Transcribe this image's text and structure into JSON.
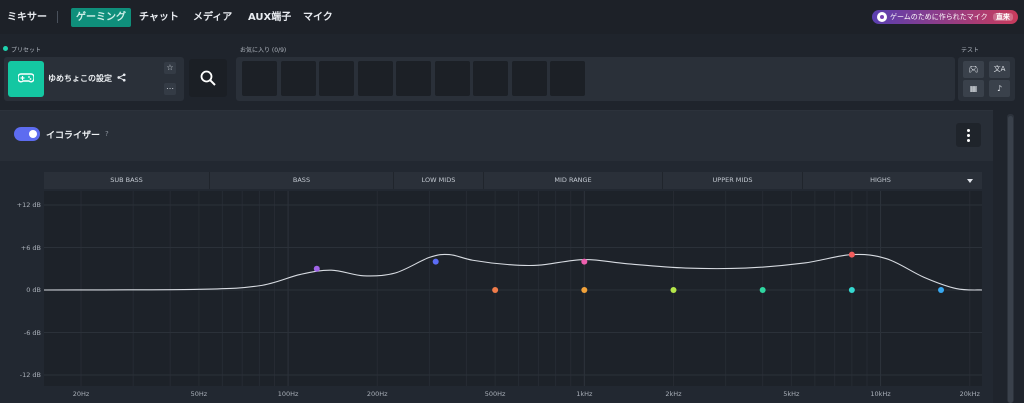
{
  "nav": {
    "items": [
      "ミキサー",
      "ゲーミング",
      "チャット",
      "メディア",
      "AUX端子",
      "マイク"
    ],
    "active": "ゲーミング",
    "promo": {
      "text": "ゲームのために作られたマイク",
      "action": "直来"
    }
  },
  "preset": {
    "label": "プリセット",
    "name": "ゆめちょこの設定",
    "icon": "gamepad-icon"
  },
  "favorites": {
    "label": "お気に入り (0/9)",
    "slots": 9
  },
  "test": {
    "label": "テスト",
    "buttons": [
      "gamepad-icon",
      "translate-icon",
      "film-icon",
      "music-note-icon"
    ]
  },
  "equalizer": {
    "title": "イコライザー",
    "help": "?",
    "enabled": true,
    "bands": [
      "SUB BASS",
      "BASS",
      "LOW MIDS",
      "MID RANGE",
      "UPPER MIDS",
      "HIGHS"
    ]
  },
  "chart_data": {
    "type": "line",
    "y_axis": {
      "ticks": [
        "+12 dB",
        "+6 dB",
        "0 dB",
        "-6 dB",
        "-12 dB"
      ],
      "range": [
        -12,
        12
      ],
      "unit": "dB"
    },
    "x_axis": {
      "scale": "log",
      "ticks": [
        "20Hz",
        "50Hz",
        "100Hz",
        "200Hz",
        "500Hz",
        "1kHz",
        "2kHz",
        "5kHz",
        "10kHz",
        "20kHz"
      ],
      "range": [
        15,
        22000
      ]
    },
    "points": [
      {
        "freq": 125,
        "gain": 3.0,
        "color": "#a065e8"
      },
      {
        "freq": 315,
        "gain": 4.0,
        "color": "#5b6cf5"
      },
      {
        "freq": 500,
        "gain": 0,
        "color": "#f07c4a"
      },
      {
        "freq": 1000,
        "gain": 4.0,
        "color": "#ee5fae"
      },
      {
        "freq": 1000,
        "gain": 0,
        "color": "#f2a23a"
      },
      {
        "freq": 2000,
        "gain": 0,
        "color": "#b5e64a"
      },
      {
        "freq": 4000,
        "gain": 0,
        "color": "#2fd6a0"
      },
      {
        "freq": 8000,
        "gain": 5.0,
        "color": "#f25c5c"
      },
      {
        "freq": 8000,
        "gain": 0,
        "color": "#35d8d0"
      },
      {
        "freq": 16000,
        "gain": 0,
        "color": "#38a8f0"
      }
    ],
    "curve": [
      [
        15,
        0
      ],
      [
        50,
        0.1
      ],
      [
        80,
        0.6
      ],
      [
        110,
        2.2
      ],
      [
        140,
        2.8
      ],
      [
        180,
        2.0
      ],
      [
        230,
        2.4
      ],
      [
        300,
        4.6
      ],
      [
        350,
        5.0
      ],
      [
        420,
        4.2
      ],
      [
        550,
        3.6
      ],
      [
        700,
        3.5
      ],
      [
        1000,
        4.3
      ],
      [
        1400,
        3.7
      ],
      [
        2200,
        3.1
      ],
      [
        3500,
        3.1
      ],
      [
        5500,
        3.8
      ],
      [
        8000,
        5.0
      ],
      [
        10500,
        4.4
      ],
      [
        14000,
        1.8
      ],
      [
        18000,
        0.2
      ],
      [
        22000,
        0
      ]
    ]
  }
}
